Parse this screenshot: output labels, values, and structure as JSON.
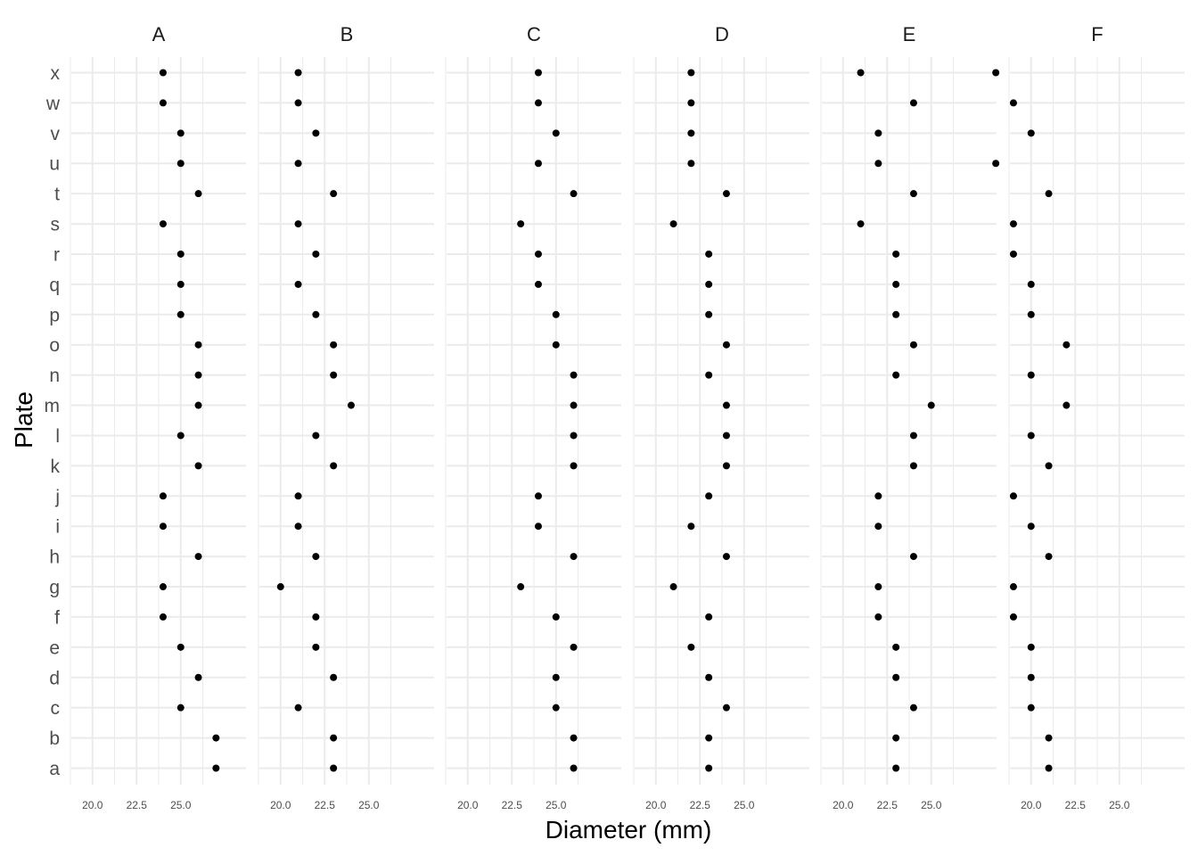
{
  "chart_data": {
    "type": "scatter",
    "facet_by": "column",
    "xlabel": "Diameter (mm)",
    "ylabel": "Plate",
    "plates": [
      "a",
      "b",
      "c",
      "d",
      "e",
      "f",
      "g",
      "h",
      "i",
      "j",
      "k",
      "l",
      "m",
      "n",
      "o",
      "p",
      "q",
      "r",
      "s",
      "t",
      "u",
      "v",
      "w",
      "x"
    ],
    "x_ticks": [
      20.0,
      22.5,
      25.0
    ],
    "x_tick_labels": [
      "20.0",
      "22.5",
      "25.0"
    ],
    "xlim": [
      18.8,
      28.7
    ],
    "grid": true,
    "marker_color": "#000000",
    "grid_color": "#ebebeb",
    "panels": [
      {
        "name": "A",
        "values": [
          27,
          27,
          25,
          26,
          25,
          24,
          24,
          26,
          24,
          24,
          26,
          25,
          26,
          26,
          26,
          25,
          25,
          25,
          24,
          26,
          25,
          25,
          24,
          24
        ]
      },
      {
        "name": "B",
        "values": [
          23,
          23,
          21,
          23,
          22,
          22,
          20,
          22,
          21,
          21,
          23,
          22,
          24,
          23,
          23,
          22,
          21,
          22,
          21,
          23,
          21,
          22,
          21,
          21
        ]
      },
      {
        "name": "C",
        "values": [
          26,
          26,
          25,
          25,
          26,
          25,
          23,
          26,
          24,
          24,
          26,
          26,
          26,
          26,
          25,
          25,
          24,
          24,
          23,
          26,
          24,
          25,
          24,
          24
        ]
      },
      {
        "name": "D",
        "values": [
          23,
          23,
          24,
          23,
          22,
          23,
          21,
          24,
          22,
          23,
          24,
          24,
          24,
          23,
          24,
          23,
          23,
          23,
          21,
          24,
          22,
          22,
          22,
          22
        ]
      },
      {
        "name": "E",
        "values": [
          23,
          23,
          24,
          23,
          23,
          22,
          22,
          24,
          22,
          22,
          24,
          24,
          25,
          23,
          24,
          23,
          23,
          23,
          21,
          24,
          22,
          22,
          24,
          21
        ]
      },
      {
        "name": "F",
        "values": [
          21,
          21,
          20,
          20,
          20,
          19,
          19,
          21,
          20,
          19,
          21,
          20,
          22,
          20,
          22,
          20,
          20,
          19,
          19,
          21,
          18,
          20,
          19,
          18
        ]
      }
    ]
  }
}
